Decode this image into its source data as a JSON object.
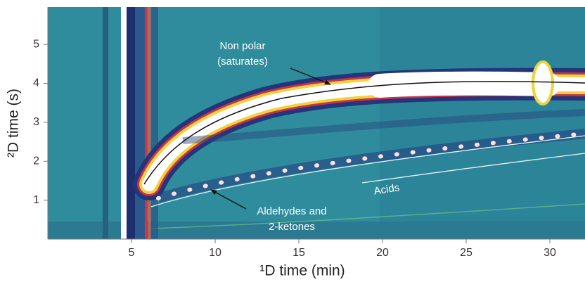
{
  "chart_data": {
    "type": "heatmap",
    "xlabel": "¹D time (min)",
    "ylabel": "²D time (s)",
    "xlim": [
      0,
      32.1
    ],
    "ylim": [
      0,
      5.96
    ],
    "xticks": [
      5,
      10,
      15,
      20,
      25,
      30
    ],
    "yticks": [
      1,
      2,
      3,
      4,
      5
    ],
    "annotations": [
      "Non polar",
      "(saturates)",
      "Aldehydes and",
      "2-ketones",
      "Acids"
    ]
  }
}
